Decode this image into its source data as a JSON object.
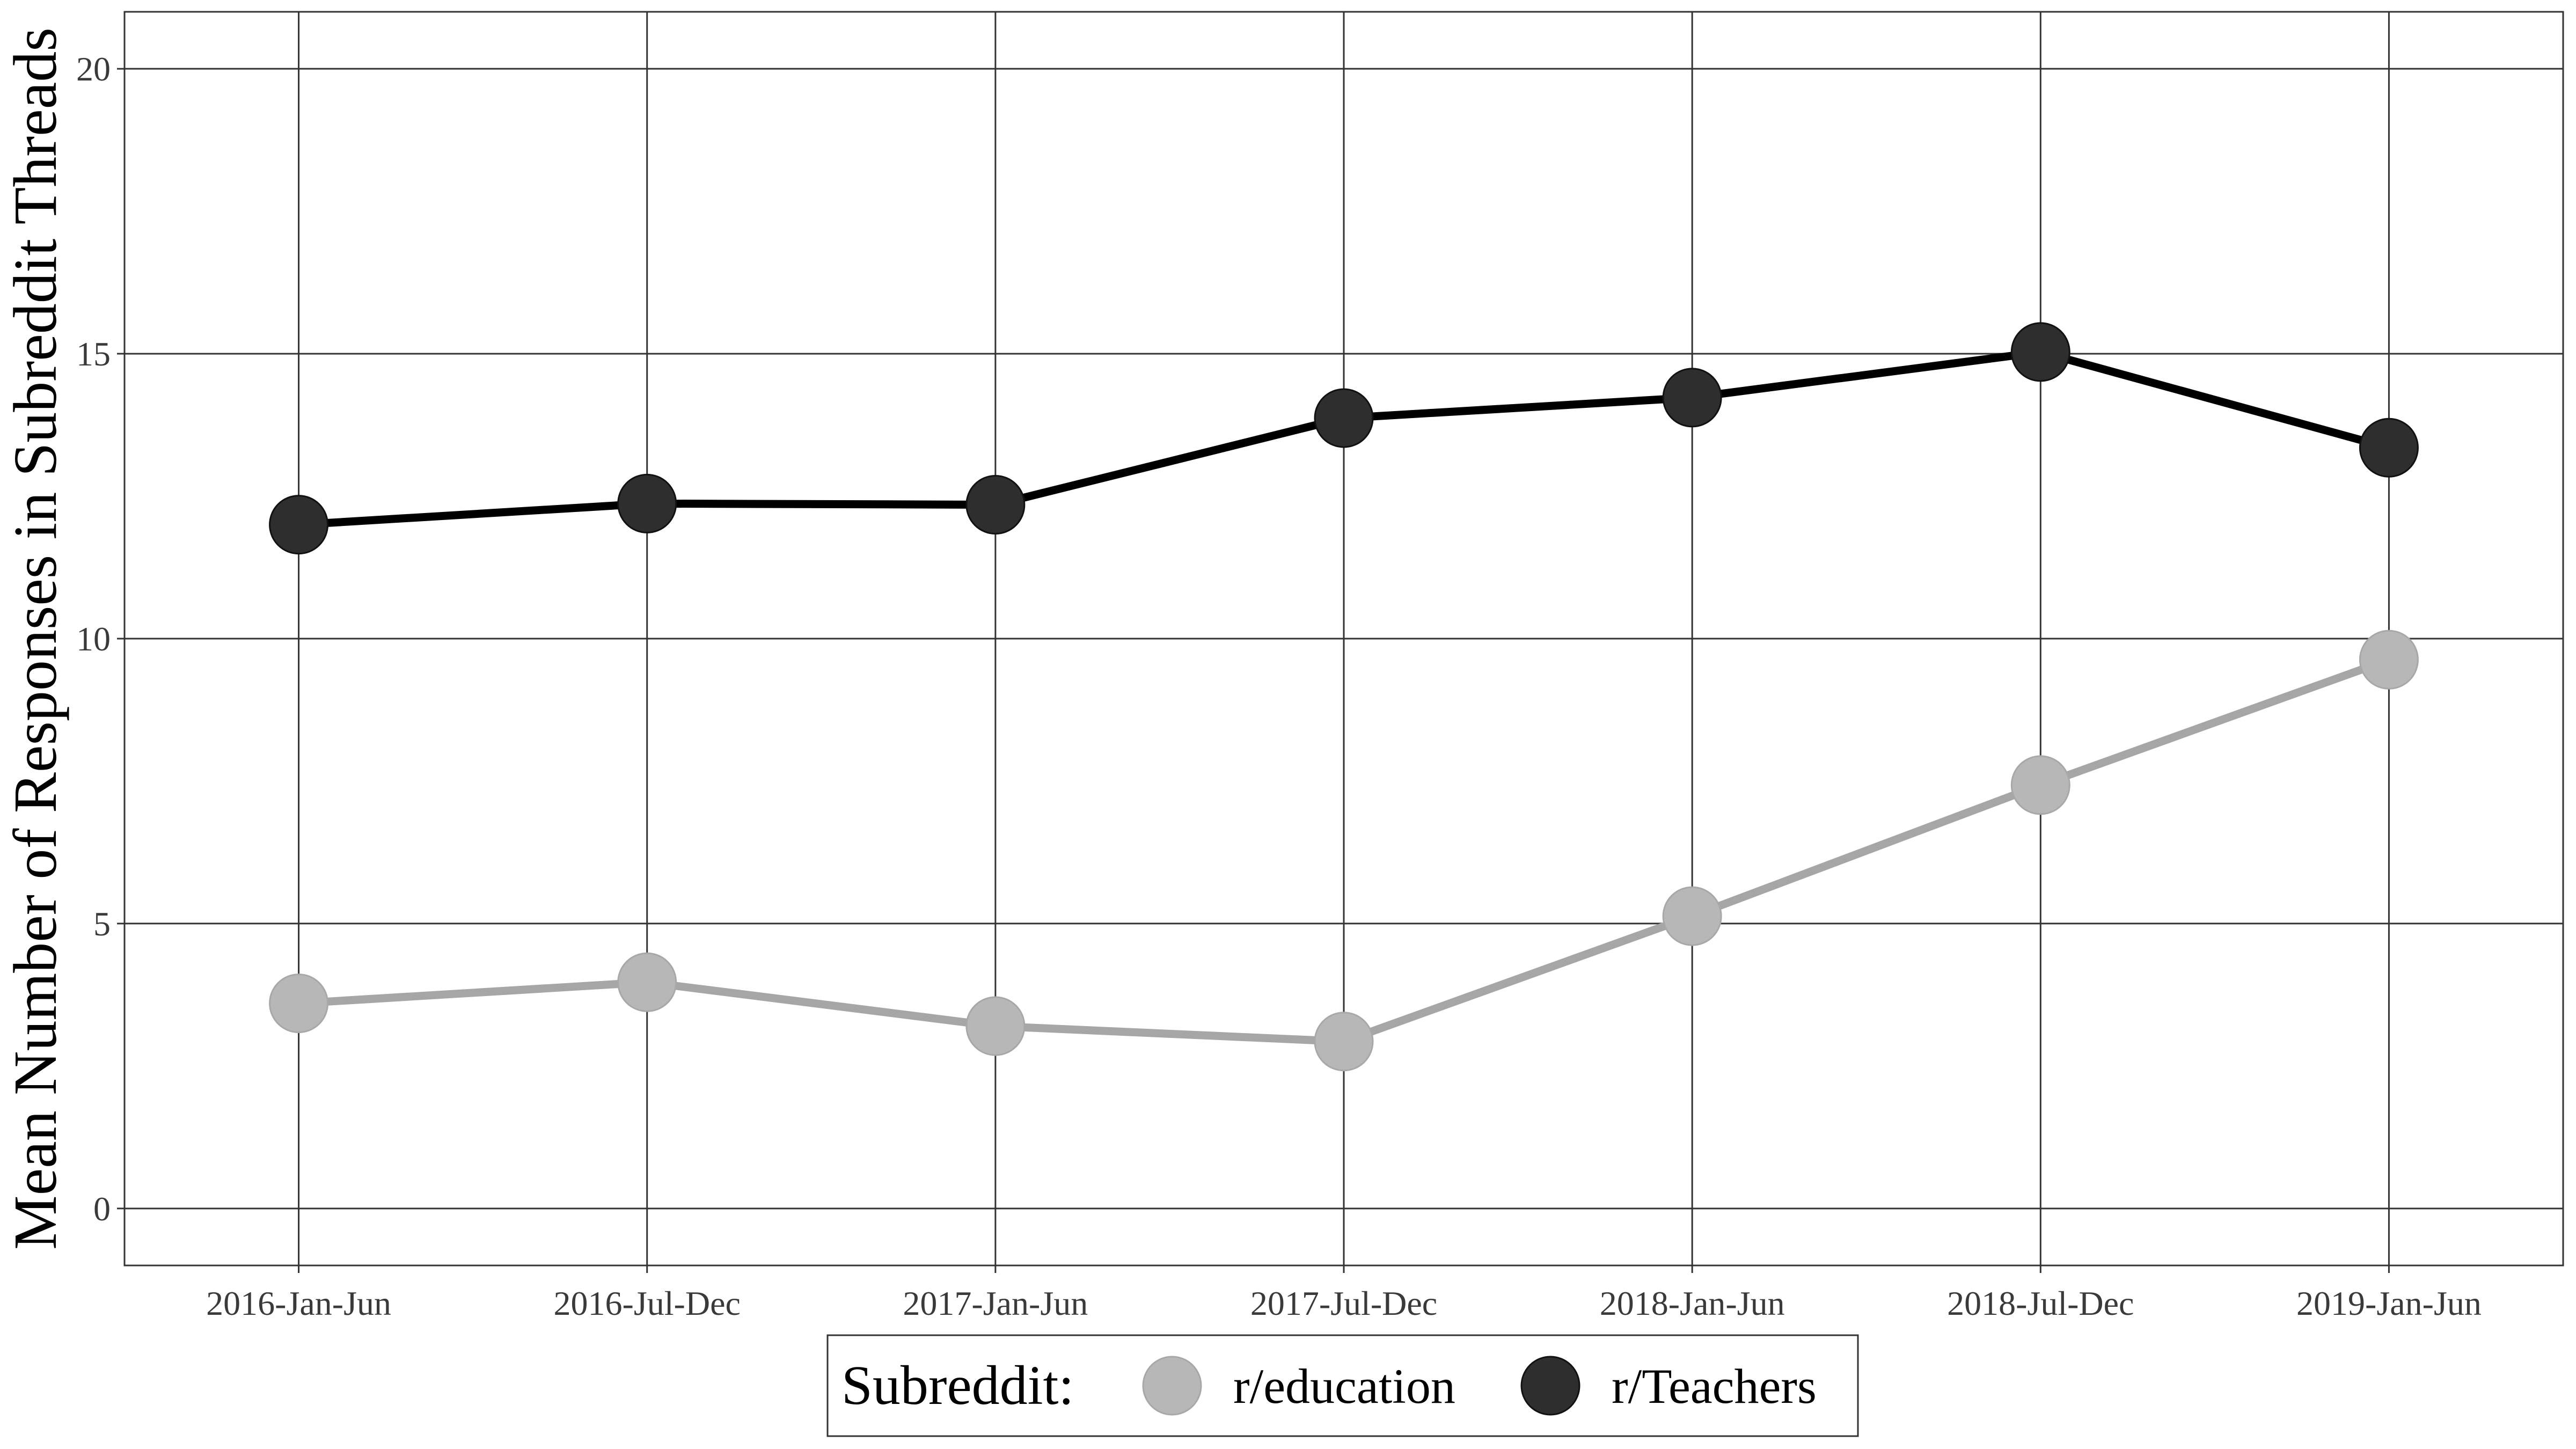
{
  "chart_data": {
    "type": "line",
    "title": "",
    "xlabel": "",
    "ylabel": "Mean Number of Responses in Subreddit Threads",
    "categories": [
      "2016-Jan-Jun",
      "2016-Jul-Dec",
      "2017-Jan-Jun",
      "2017-Jul-Dec",
      "2018-Jan-Jun",
      "2018-Jul-Dec",
      "2019-Jan-Jun"
    ],
    "yticks": [
      "0",
      "5",
      "10",
      "15",
      "20"
    ],
    "ylim": [
      -1,
      21
    ],
    "grid": true,
    "legend_position": "bottom",
    "legend_title": "Subreddit:",
    "series": [
      {
        "name": "r/education",
        "color": "#a6a6a6",
        "values": [
          3.6,
          3.97,
          3.2,
          2.93,
          5.13,
          7.43,
          9.63
        ]
      },
      {
        "name": "r/Teachers",
        "color": "#000000",
        "values": [
          12.0,
          12.37,
          12.35,
          13.87,
          14.23,
          15.03,
          13.35
        ]
      }
    ]
  }
}
